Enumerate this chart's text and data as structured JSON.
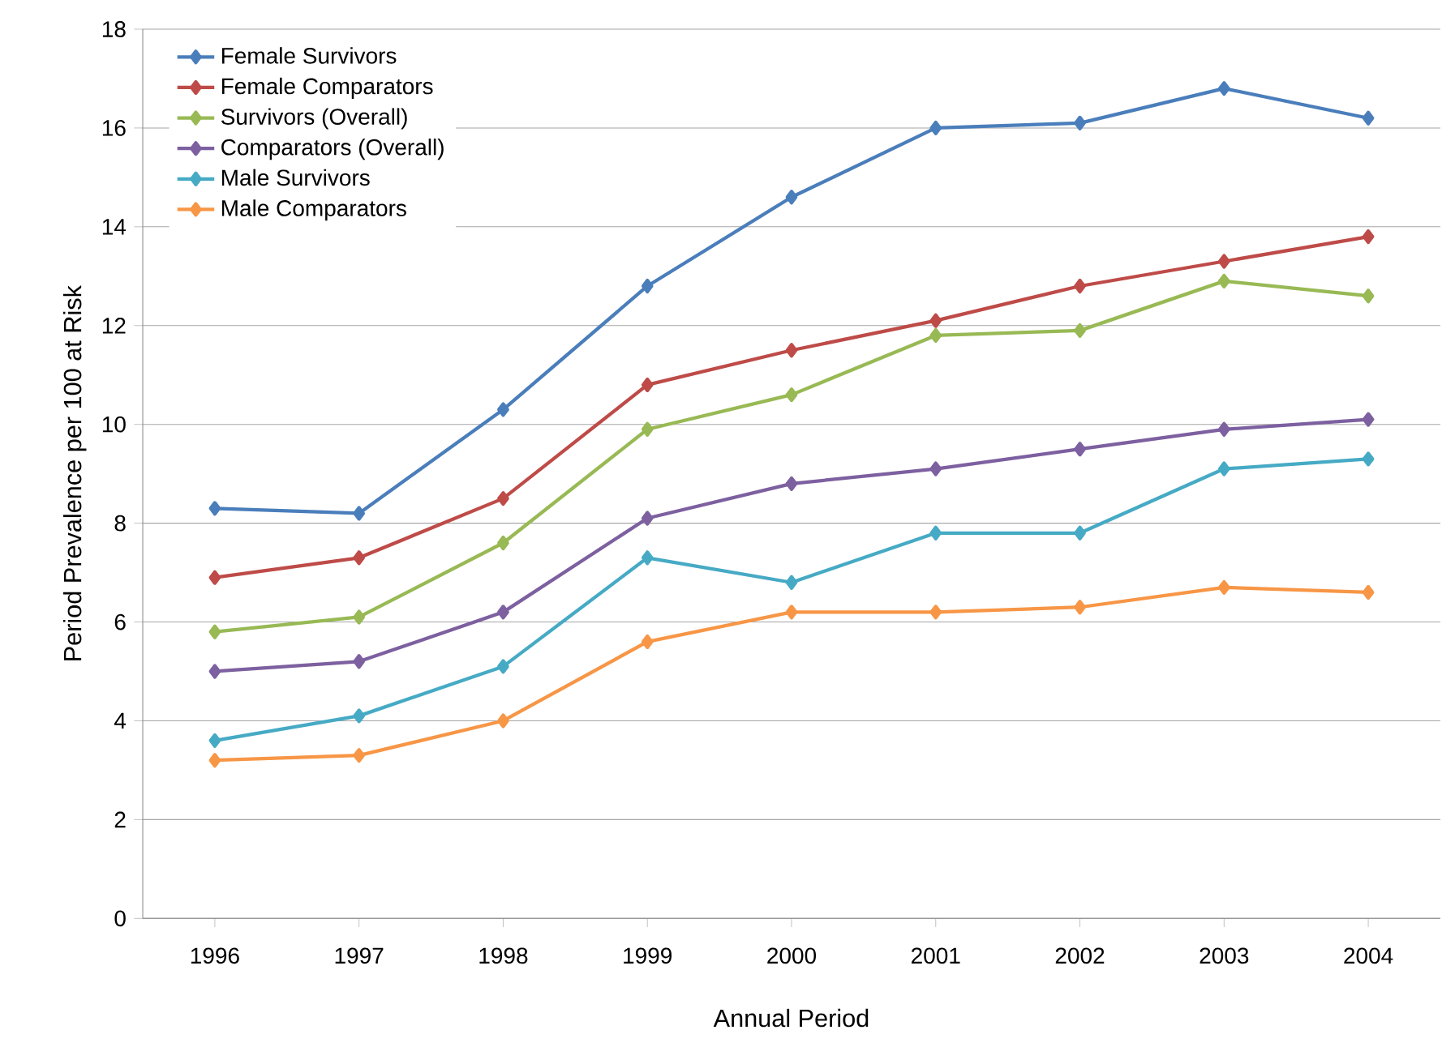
{
  "chart_data": {
    "type": "line",
    "xlabel": "Annual Period",
    "ylabel": "Period Prevalence per 100 at Risk",
    "categories": [
      "1996",
      "1997",
      "1998",
      "1999",
      "2000",
      "2001",
      "2002",
      "2003",
      "2004"
    ],
    "ylim": [
      0,
      18
    ],
    "yticks": [
      0,
      2,
      4,
      6,
      8,
      10,
      12,
      14,
      16,
      18
    ],
    "grid": "y",
    "legend": "top left",
    "marker": "diamond",
    "line_style": "solid",
    "series": [
      {
        "name": "Female Survivors",
        "color": "#4a7ebb",
        "values": [
          8.3,
          8.2,
          10.3,
          12.8,
          14.6,
          16.0,
          16.1,
          16.8,
          16.2
        ]
      },
      {
        "name": "Female Comparators",
        "color": "#be4b48",
        "values": [
          6.9,
          7.3,
          8.5,
          10.8,
          11.5,
          12.1,
          12.8,
          13.3,
          13.8
        ]
      },
      {
        "name": "Survivors (Overall)",
        "color": "#98b954",
        "values": [
          5.8,
          6.1,
          7.6,
          9.9,
          10.6,
          11.8,
          11.9,
          12.9,
          12.6
        ]
      },
      {
        "name": "Comparators (Overall)",
        "color": "#7d60a0",
        "values": [
          5.0,
          5.2,
          6.2,
          8.1,
          8.8,
          9.1,
          9.5,
          9.9,
          10.1
        ]
      },
      {
        "name": "Male Survivors",
        "color": "#46aac5",
        "values": [
          3.6,
          4.1,
          5.1,
          7.3,
          6.8,
          7.8,
          7.8,
          9.1,
          9.3
        ]
      },
      {
        "name": "Male Comparators",
        "color": "#f79646",
        "values": [
          3.2,
          3.3,
          4.0,
          5.6,
          6.2,
          6.2,
          6.3,
          6.7,
          6.6
        ]
      }
    ]
  }
}
